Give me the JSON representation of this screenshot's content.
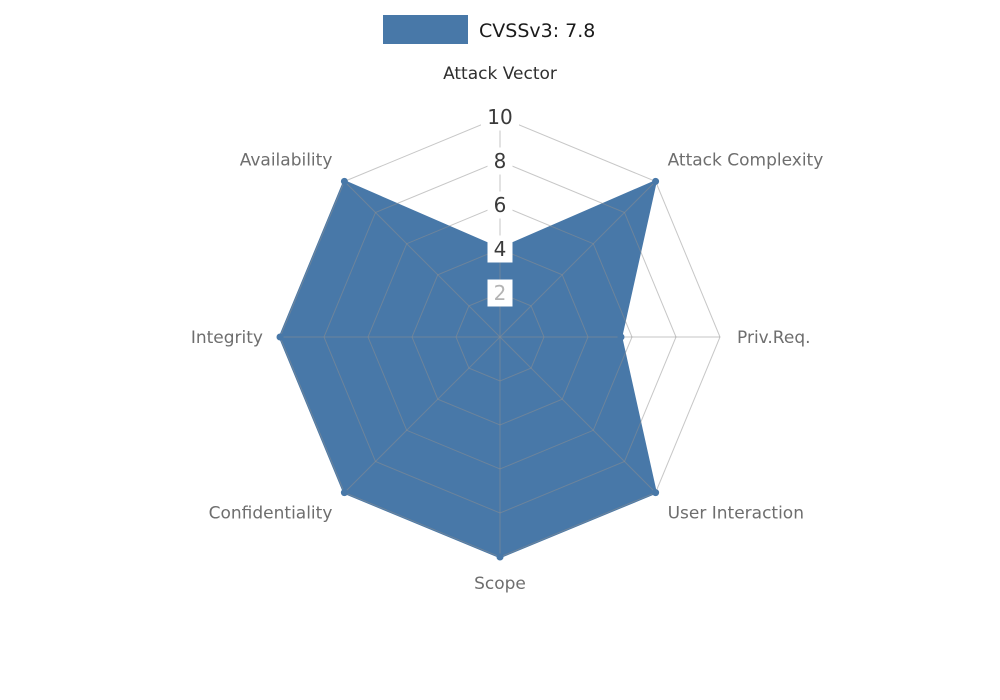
{
  "chart_data": {
    "type": "radar",
    "title": "",
    "legend_label": "CVSSv3: 7.8",
    "max": 10,
    "ticks": [
      {
        "value": 2,
        "muted": true
      },
      {
        "value": 4,
        "muted": false
      },
      {
        "value": 6,
        "muted": false
      },
      {
        "value": 8,
        "muted": false
      },
      {
        "value": 10,
        "muted": false
      }
    ],
    "axes": [
      {
        "label": "Attack Vector",
        "primary": true
      },
      {
        "label": "Attack Complexity",
        "primary": false
      },
      {
        "label": "Priv.Req.",
        "primary": false
      },
      {
        "label": "User Interaction",
        "primary": false
      },
      {
        "label": "Scope",
        "primary": false
      },
      {
        "label": "Confidentiality",
        "primary": false
      },
      {
        "label": "Integrity",
        "primary": false
      },
      {
        "label": "Availability",
        "primary": false
      }
    ],
    "series": [
      {
        "name": "CVSSv3: 7.8",
        "values": [
          4,
          10,
          5.5,
          10,
          10,
          10,
          10,
          10
        ]
      }
    ],
    "colors": {
      "fill": "#4878a8",
      "grid": "#8f8f8f",
      "tick": "#3a3a3a",
      "tick_muted": "#b4b4b4",
      "label": "#6e6e6e",
      "label_primary": "#2f2f2f",
      "legend_text": "#1a1a1a",
      "background": "#ffffff"
    },
    "layout_hints": {
      "legend_position": "top",
      "grid": "on",
      "rings": 5,
      "shape": "octagon",
      "axis_range": [
        0,
        10
      ]
    }
  }
}
